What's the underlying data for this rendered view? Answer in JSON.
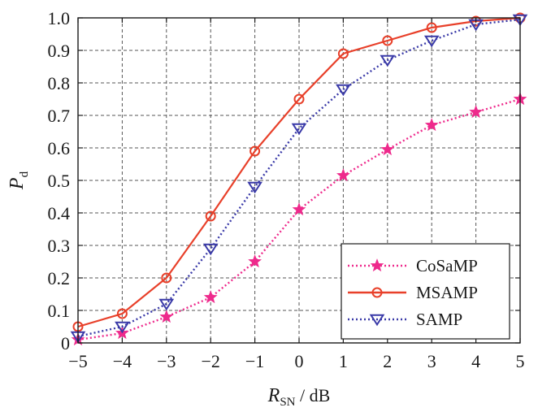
{
  "chart_data": {
    "type": "line",
    "x": [
      -5,
      -4,
      -3,
      -2,
      -1,
      0,
      1,
      2,
      3,
      4,
      5
    ],
    "xlim": [
      -5,
      5
    ],
    "ylim": [
      0,
      1.0
    ],
    "xticks": [
      "−5",
      "−4",
      "−3",
      "−2",
      "−1",
      "0",
      "1",
      "2",
      "3",
      "4",
      "5"
    ],
    "yticks": [
      "0",
      "0.1",
      "0.2",
      "0.3",
      "0.4",
      "0.5",
      "0.6",
      "0.7",
      "0.8",
      "0.9",
      "1.0"
    ],
    "xlabel": {
      "main": "R",
      "sub": "SN",
      "unit": " / dB"
    },
    "ylabel": {
      "main": "P",
      "sub": "d"
    },
    "grid": true,
    "legend_position": "bottom-right",
    "series": [
      {
        "name": "CoSaMP",
        "color": "#ee2a8c",
        "line_style": "dotted",
        "marker": "star",
        "values": [
          0.01,
          0.03,
          0.08,
          0.14,
          0.25,
          0.41,
          0.515,
          0.595,
          0.67,
          0.71,
          0.75
        ]
      },
      {
        "name": "MSAMP",
        "color": "#e8402a",
        "line_style": "solid",
        "marker": "circle",
        "values": [
          0.05,
          0.09,
          0.2,
          0.39,
          0.59,
          0.75,
          0.89,
          0.93,
          0.97,
          0.99,
          1.0
        ]
      },
      {
        "name": "SAMP",
        "color": "#3a3aa8",
        "line_style": "dotted",
        "marker": "triangle-down",
        "values": [
          0.02,
          0.05,
          0.12,
          0.29,
          0.48,
          0.66,
          0.78,
          0.87,
          0.93,
          0.98,
          0.995
        ]
      }
    ]
  }
}
